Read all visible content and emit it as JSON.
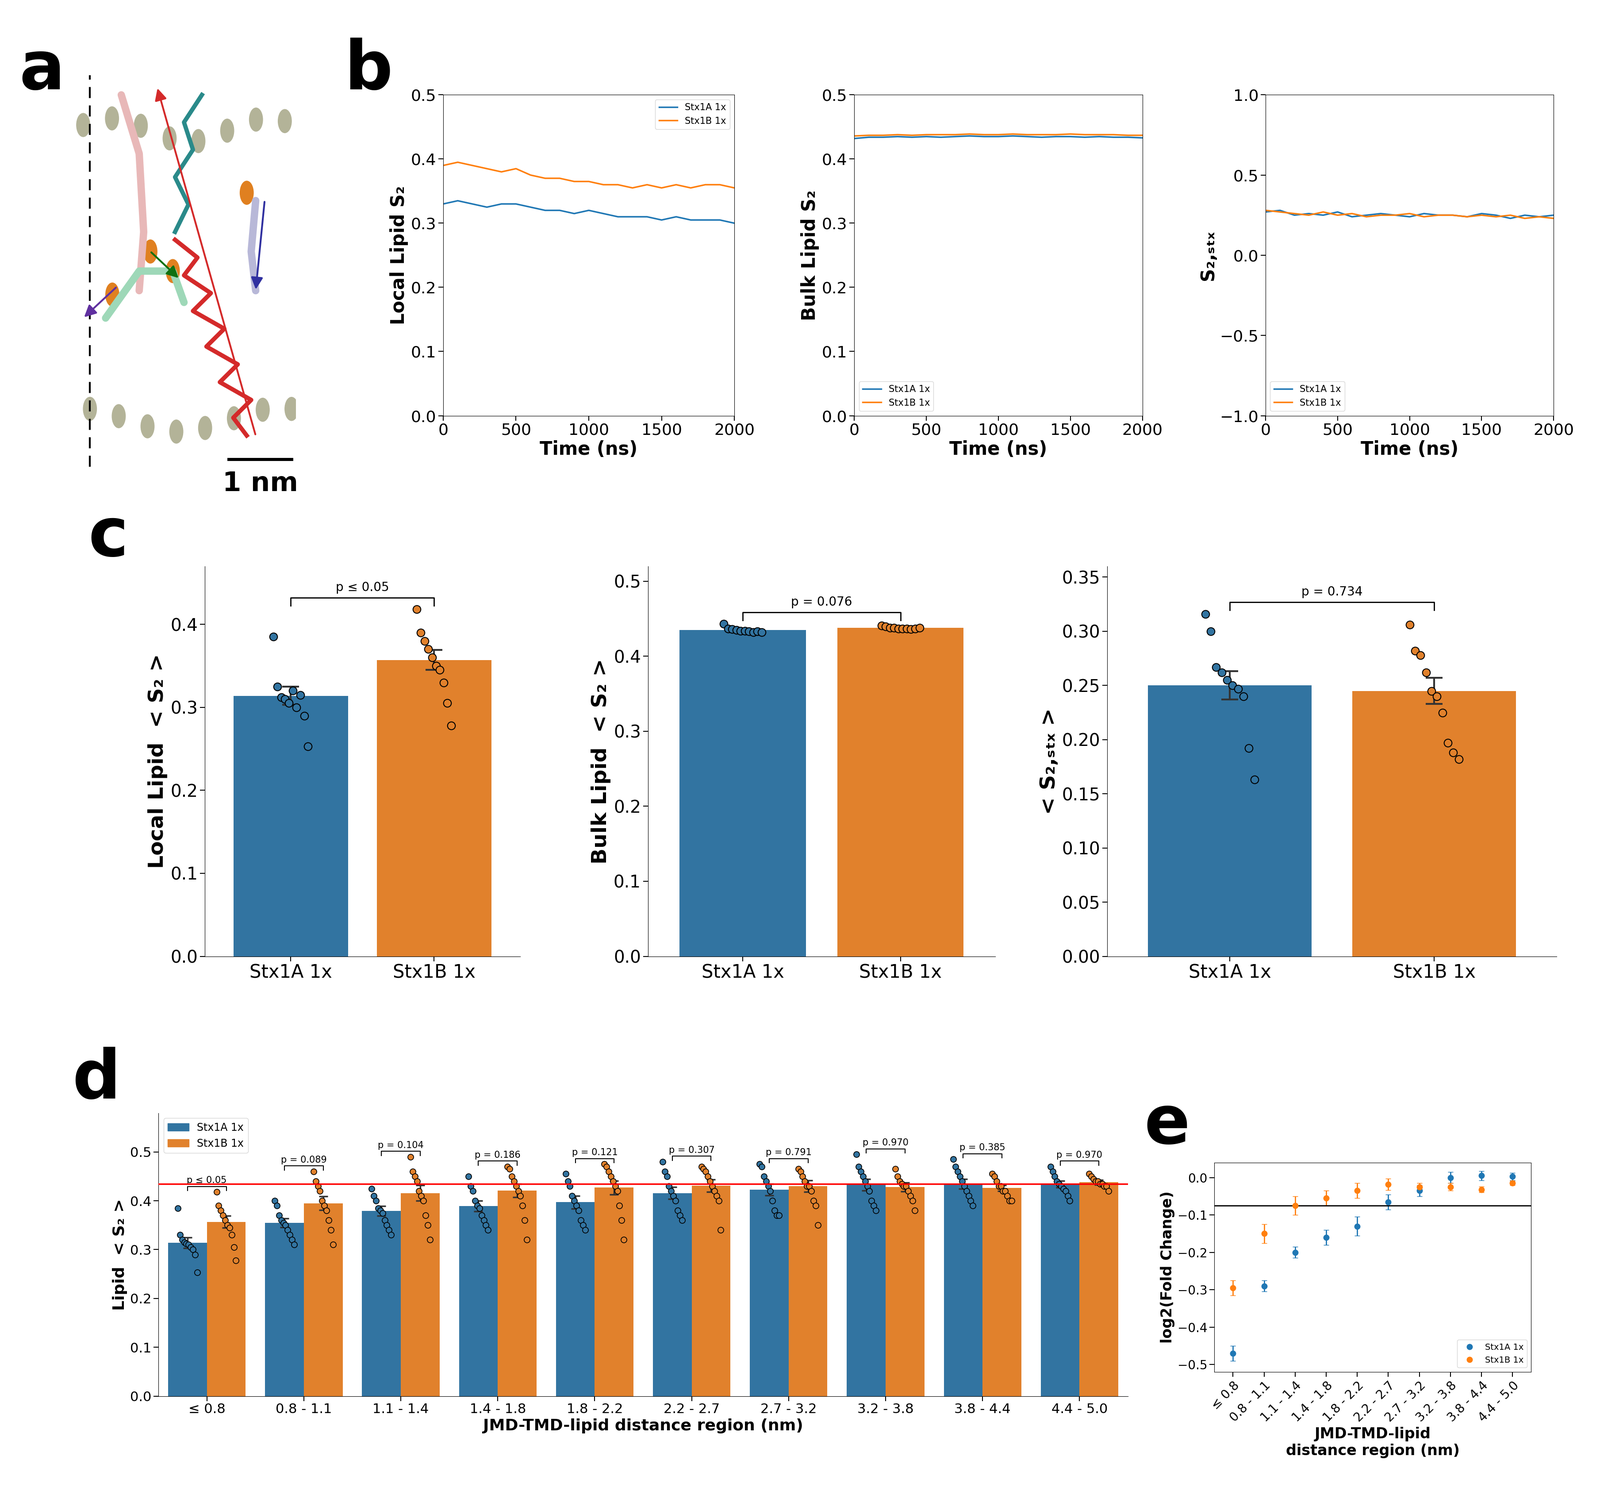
{
  "diagram": {
    "panel": "a",
    "scale_bar": "1 nm"
  },
  "chart_data": [
    {
      "panel": "b",
      "type": "line",
      "x_label": "Time (ns)",
      "y_label": "Local Lipid S₂",
      "x": [
        0,
        100,
        200,
        300,
        400,
        500,
        600,
        700,
        800,
        900,
        1000,
        1100,
        1200,
        1300,
        1400,
        1500,
        1600,
        1700,
        1800,
        1900,
        2000
      ],
      "series": [
        {
          "name": "Stx1A 1x",
          "color": "#1f77b4",
          "values": [
            0.33,
            0.335,
            0.33,
            0.325,
            0.33,
            0.33,
            0.325,
            0.32,
            0.32,
            0.315,
            0.32,
            0.315,
            0.31,
            0.31,
            0.31,
            0.305,
            0.31,
            0.305,
            0.305,
            0.305,
            0.3
          ]
        },
        {
          "name": "Stx1B 1x",
          "color": "#ff7f0e",
          "values": [
            0.39,
            0.395,
            0.39,
            0.385,
            0.38,
            0.385,
            0.375,
            0.37,
            0.37,
            0.365,
            0.365,
            0.36,
            0.36,
            0.355,
            0.36,
            0.355,
            0.36,
            0.355,
            0.36,
            0.36,
            0.355
          ]
        }
      ],
      "xlim": [
        0,
        2000
      ],
      "xticks": [
        0,
        500,
        1000,
        1500,
        2000
      ],
      "ylim": [
        0.0,
        0.5
      ],
      "yticks": [
        0.0,
        0.1,
        0.2,
        0.3,
        0.4,
        0.5
      ],
      "legend": "upper right"
    },
    {
      "panel": null,
      "type": "line",
      "x_label": "Time (ns)",
      "y_label": "Bulk Lipid S₂",
      "x": [
        0,
        100,
        200,
        300,
        400,
        500,
        600,
        700,
        800,
        900,
        1000,
        1100,
        1200,
        1300,
        1400,
        1500,
        1600,
        1700,
        1800,
        1900,
        2000
      ],
      "series": [
        {
          "name": "Stx1A 1x",
          "color": "#1f77b4",
          "values": [
            0.432,
            0.434,
            0.434,
            0.435,
            0.434,
            0.435,
            0.434,
            0.435,
            0.436,
            0.435,
            0.435,
            0.436,
            0.435,
            0.434,
            0.435,
            0.435,
            0.434,
            0.435,
            0.434,
            0.434,
            0.433
          ]
        },
        {
          "name": "Stx1B 1x",
          "color": "#ff7f0e",
          "values": [
            0.436,
            0.437,
            0.437,
            0.438,
            0.437,
            0.438,
            0.438,
            0.438,
            0.439,
            0.438,
            0.438,
            0.439,
            0.438,
            0.438,
            0.438,
            0.439,
            0.438,
            0.438,
            0.438,
            0.437,
            0.437
          ]
        }
      ],
      "xlim": [
        0,
        2000
      ],
      "xticks": [
        0,
        500,
        1000,
        1500,
        2000
      ],
      "ylim": [
        0.0,
        0.5
      ],
      "yticks": [
        0.0,
        0.1,
        0.2,
        0.3,
        0.4,
        0.5
      ],
      "legend": "lower left"
    },
    {
      "panel": null,
      "type": "line",
      "x_label": "Time (ns)",
      "y_label": "S₂,ₛₜₓ",
      "x": [
        0,
        100,
        200,
        300,
        400,
        500,
        600,
        700,
        800,
        900,
        1000,
        1100,
        1200,
        1300,
        1400,
        1500,
        1600,
        1700,
        1800,
        1900,
        2000
      ],
      "series": [
        {
          "name": "Stx1A 1x",
          "color": "#1f77b4",
          "values": [
            0.27,
            0.28,
            0.25,
            0.26,
            0.25,
            0.27,
            0.24,
            0.25,
            0.26,
            0.25,
            0.24,
            0.26,
            0.25,
            0.25,
            0.24,
            0.26,
            0.25,
            0.23,
            0.25,
            0.24,
            0.25
          ]
        },
        {
          "name": "Stx1B 1x",
          "color": "#ff7f0e",
          "values": [
            0.28,
            0.27,
            0.26,
            0.25,
            0.27,
            0.25,
            0.26,
            0.24,
            0.25,
            0.25,
            0.26,
            0.24,
            0.25,
            0.25,
            0.24,
            0.25,
            0.24,
            0.25,
            0.23,
            0.24,
            0.23
          ]
        }
      ],
      "xlim": [
        0,
        2000
      ],
      "xticks": [
        0,
        500,
        1000,
        1500,
        2000
      ],
      "ylim": [
        -1.0,
        1.0
      ],
      "yticks": [
        {
          "value": -1.0,
          "label": "−1.0"
        },
        {
          "value": -0.5,
          "label": "−0.5"
        },
        0.0,
        0.5,
        1.0
      ],
      "legend": "lower left"
    },
    {
      "panel": "c",
      "type": "bar",
      "y_label": "Local Lipid  < S₂ >",
      "categories": [
        "Stx1A 1x",
        "Stx1B 1x"
      ],
      "colors": [
        "#3274a1",
        "#e1812c"
      ],
      "values": [
        0.314,
        0.357
      ],
      "errors": [
        0.011,
        0.012
      ],
      "points": [
        [
          0.385,
          0.325,
          0.312,
          0.31,
          0.305,
          0.32,
          0.3,
          0.315,
          0.29,
          0.253
        ],
        [
          0.418,
          0.39,
          0.38,
          0.37,
          0.36,
          0.35,
          0.345,
          0.33,
          0.305,
          0.278
        ]
      ],
      "annotation": "p ≤ 0.05",
      "ylim": [
        0.0,
        0.47
      ],
      "yticks": [
        0.0,
        0.1,
        0.2,
        0.3,
        0.4
      ]
    },
    {
      "panel": null,
      "type": "bar",
      "y_label": "Bulk Lipid  < S₂ >",
      "categories": [
        "Stx1A 1x",
        "Stx1B 1x"
      ],
      "colors": [
        "#3274a1",
        "#e1812c"
      ],
      "values": [
        0.435,
        0.438
      ],
      "errors": [
        0.001,
        0.0006
      ],
      "points": [
        [
          0.443,
          0.437,
          0.436,
          0.435,
          0.434,
          0.434,
          0.433,
          0.432,
          0.433,
          0.432
        ],
        [
          0.441,
          0.44,
          0.438,
          0.438,
          0.437,
          0.437,
          0.437,
          0.436,
          0.437,
          0.438
        ]
      ],
      "annotation": "p = 0.076",
      "ylim": [
        0.0,
        0.52
      ],
      "yticks": [
        0.0,
        0.1,
        0.2,
        0.3,
        0.4,
        0.5
      ]
    },
    {
      "panel": null,
      "type": "bar",
      "y_label": "< S₂,ₛₜₓ >",
      "categories": [
        "Stx1A 1x",
        "Stx1B 1x"
      ],
      "colors": [
        "#3274a1",
        "#e1812c"
      ],
      "values": [
        0.25,
        0.245
      ],
      "errors": [
        0.013,
        0.012
      ],
      "points": [
        [
          0.316,
          0.3,
          0.267,
          0.262,
          0.255,
          0.25,
          0.247,
          0.24,
          0.192,
          0.163
        ],
        [
          0.306,
          0.282,
          0.278,
          0.262,
          0.245,
          0.24,
          0.225,
          0.197,
          0.188,
          0.182
        ]
      ],
      "annotation": "p = 0.734",
      "ylim": [
        0.0,
        0.36
      ],
      "yticks": [
        {
          "value": 0.0,
          "label": "0.00"
        },
        {
          "value": 0.05,
          "label": "0.05"
        },
        {
          "value": 0.1,
          "label": "0.10"
        },
        {
          "value": 0.15,
          "label": "0.15"
        },
        {
          "value": 0.2,
          "label": "0.20"
        },
        {
          "value": 0.25,
          "label": "0.25"
        },
        {
          "value": 0.3,
          "label": "0.30"
        },
        {
          "value": 0.35,
          "label": "0.35"
        }
      ]
    },
    {
      "panel": "d",
      "type": "grouped_bar",
      "x_label": "JMD-TMD-lipid distance region (nm)",
      "y_label": "Lipid  < S₂ >",
      "categories": [
        "≤ 0.8",
        "0.8 - 1.1",
        "1.1 - 1.4",
        "1.4 - 1.8",
        "1.8 - 2.2",
        "2.2 - 2.7",
        "2.7 - 3.2",
        "3.2 - 3.8",
        "3.8 - 4.4",
        "4.4 - 5.0"
      ],
      "series": [
        {
          "name": "Stx1A 1x",
          "color": "#3274a1",
          "values": [
            0.314,
            0.355,
            0.379,
            0.389,
            0.397,
            0.416,
            0.423,
            0.433,
            0.435,
            0.434
          ],
          "errors": [
            0.011,
            0.009,
            0.01,
            0.011,
            0.013,
            0.012,
            0.012,
            0.012,
            0.01,
            0.007
          ],
          "points": [
            [
              0.385,
              0.33,
              0.32,
              0.315,
              0.312,
              0.31,
              0.305,
              0.3,
              0.29,
              0.253
            ],
            [
              0.4,
              0.39,
              0.37,
              0.36,
              0.355,
              0.35,
              0.34,
              0.33,
              0.32,
              0.31
            ],
            [
              0.425,
              0.41,
              0.4,
              0.385,
              0.38,
              0.375,
              0.36,
              0.35,
              0.34,
              0.33
            ],
            [
              0.45,
              0.43,
              0.42,
              0.4,
              0.39,
              0.385,
              0.37,
              0.36,
              0.35,
              0.34
            ],
            [
              0.455,
              0.44,
              0.43,
              0.41,
              0.4,
              0.39,
              0.38,
              0.36,
              0.35,
              0.34
            ],
            [
              0.48,
              0.46,
              0.45,
              0.43,
              0.42,
              0.41,
              0.4,
              0.38,
              0.37,
              0.36
            ],
            [
              0.475,
              0.47,
              0.45,
              0.44,
              0.43,
              0.42,
              0.4,
              0.38,
              0.37,
              0.37
            ],
            [
              0.495,
              0.47,
              0.46,
              0.45,
              0.44,
              0.43,
              0.42,
              0.4,
              0.39,
              0.38
            ],
            [
              0.485,
              0.47,
              0.46,
              0.45,
              0.44,
              0.43,
              0.42,
              0.41,
              0.4,
              0.39
            ],
            [
              0.47,
              0.46,
              0.45,
              0.44,
              0.435,
              0.43,
              0.425,
              0.42,
              0.41,
              0.4
            ]
          ]
        },
        {
          "name": "Stx1B 1x",
          "color": "#e1812c",
          "values": [
            0.357,
            0.395,
            0.416,
            0.421,
            0.427,
            0.431,
            0.43,
            0.428,
            0.426,
            0.438
          ],
          "errors": [
            0.012,
            0.014,
            0.016,
            0.014,
            0.014,
            0.013,
            0.012,
            0.009,
            0.006,
            0.005
          ],
          "points": [
            [
              0.418,
              0.39,
              0.38,
              0.37,
              0.36,
              0.35,
              0.345,
              0.33,
              0.305,
              0.278
            ],
            [
              0.46,
              0.44,
              0.43,
              0.42,
              0.4,
              0.39,
              0.38,
              0.36,
              0.34,
              0.31
            ],
            [
              0.49,
              0.46,
              0.45,
              0.44,
              0.42,
              0.41,
              0.4,
              0.37,
              0.35,
              0.32
            ],
            [
              0.47,
              0.465,
              0.45,
              0.44,
              0.43,
              0.42,
              0.41,
              0.39,
              0.36,
              0.32
            ],
            [
              0.475,
              0.47,
              0.46,
              0.45,
              0.44,
              0.43,
              0.42,
              0.39,
              0.36,
              0.32
            ],
            [
              0.47,
              0.465,
              0.46,
              0.45,
              0.44,
              0.43,
              0.42,
              0.41,
              0.4,
              0.34
            ],
            [
              0.465,
              0.46,
              0.45,
              0.44,
              0.43,
              0.43,
              0.42,
              0.4,
              0.39,
              0.35
            ],
            [
              0.465,
              0.45,
              0.44,
              0.435,
              0.43,
              0.43,
              0.42,
              0.41,
              0.4,
              0.38
            ],
            [
              0.455,
              0.45,
              0.44,
              0.43,
              0.43,
              0.42,
              0.42,
              0.41,
              0.4,
              0.4
            ],
            [
              0.455,
              0.45,
              0.445,
              0.44,
              0.44,
              0.435,
              0.435,
              0.43,
              0.43,
              0.42
            ]
          ]
        }
      ],
      "annotations": [
        "p ≤ 0.05",
        "p = 0.089",
        "p = 0.104",
        "p = 0.186",
        "p = 0.121",
        "p = 0.307",
        "p = 0.791",
        "p = 0.970",
        "p = 0.385",
        "p = 0.970"
      ],
      "hline": 0.435,
      "hline_color": "red",
      "ylim": [
        0.0,
        0.58
      ],
      "yticks": [
        0.0,
        0.1,
        0.2,
        0.3,
        0.4,
        0.5
      ],
      "legend": "upper left"
    },
    {
      "panel": "e",
      "type": "scatter",
      "x_label": "JMD-TMD-lipid\ndistance region (nm)",
      "y_label": "log2(Fold Change)",
      "categories": [
        "≤ 0.8",
        "0.8 - 1.1",
        "1.1 - 1.4",
        "1.4 - 1.8",
        "1.8 - 2.2",
        "2.2 - 2.7",
        "2.7 - 3.2",
        "3.2 - 3.8",
        "3.8 - 4.4",
        "4.4 - 5.0"
      ],
      "series": [
        {
          "name": "Stx1A 1x",
          "color": "#1f77b4",
          "marker": "o",
          "values": [
            -0.47,
            -0.29,
            -0.2,
            -0.16,
            -0.13,
            -0.065,
            -0.035,
            0.0,
            0.005,
            0.003
          ],
          "errors": [
            0.02,
            0.015,
            0.015,
            0.02,
            0.025,
            0.02,
            0.015,
            0.015,
            0.012,
            0.01
          ]
        },
        {
          "name": "Stx1B 1x",
          "color": "#ff7f0e",
          "marker": "o",
          "values": [
            -0.295,
            -0.15,
            -0.075,
            -0.055,
            -0.035,
            -0.018,
            -0.025,
            -0.025,
            -0.032,
            -0.015
          ],
          "errors": [
            0.02,
            0.025,
            0.025,
            0.02,
            0.02,
            0.015,
            0.01,
            0.01,
            0.008,
            0.006
          ]
        }
      ],
      "hline": -0.075,
      "hline_color": "black",
      "ylim": [
        -0.52,
        0.04
      ],
      "yticks": [
        {
          "value": -0.5,
          "label": "−0.5"
        },
        {
          "value": -0.4,
          "label": "−0.4"
        },
        {
          "value": -0.3,
          "label": "−0.3"
        },
        {
          "value": -0.2,
          "label": "−0.2"
        },
        {
          "value": -0.1,
          "label": "−0.1"
        },
        0.0
      ],
      "legend": "lower right"
    }
  ]
}
